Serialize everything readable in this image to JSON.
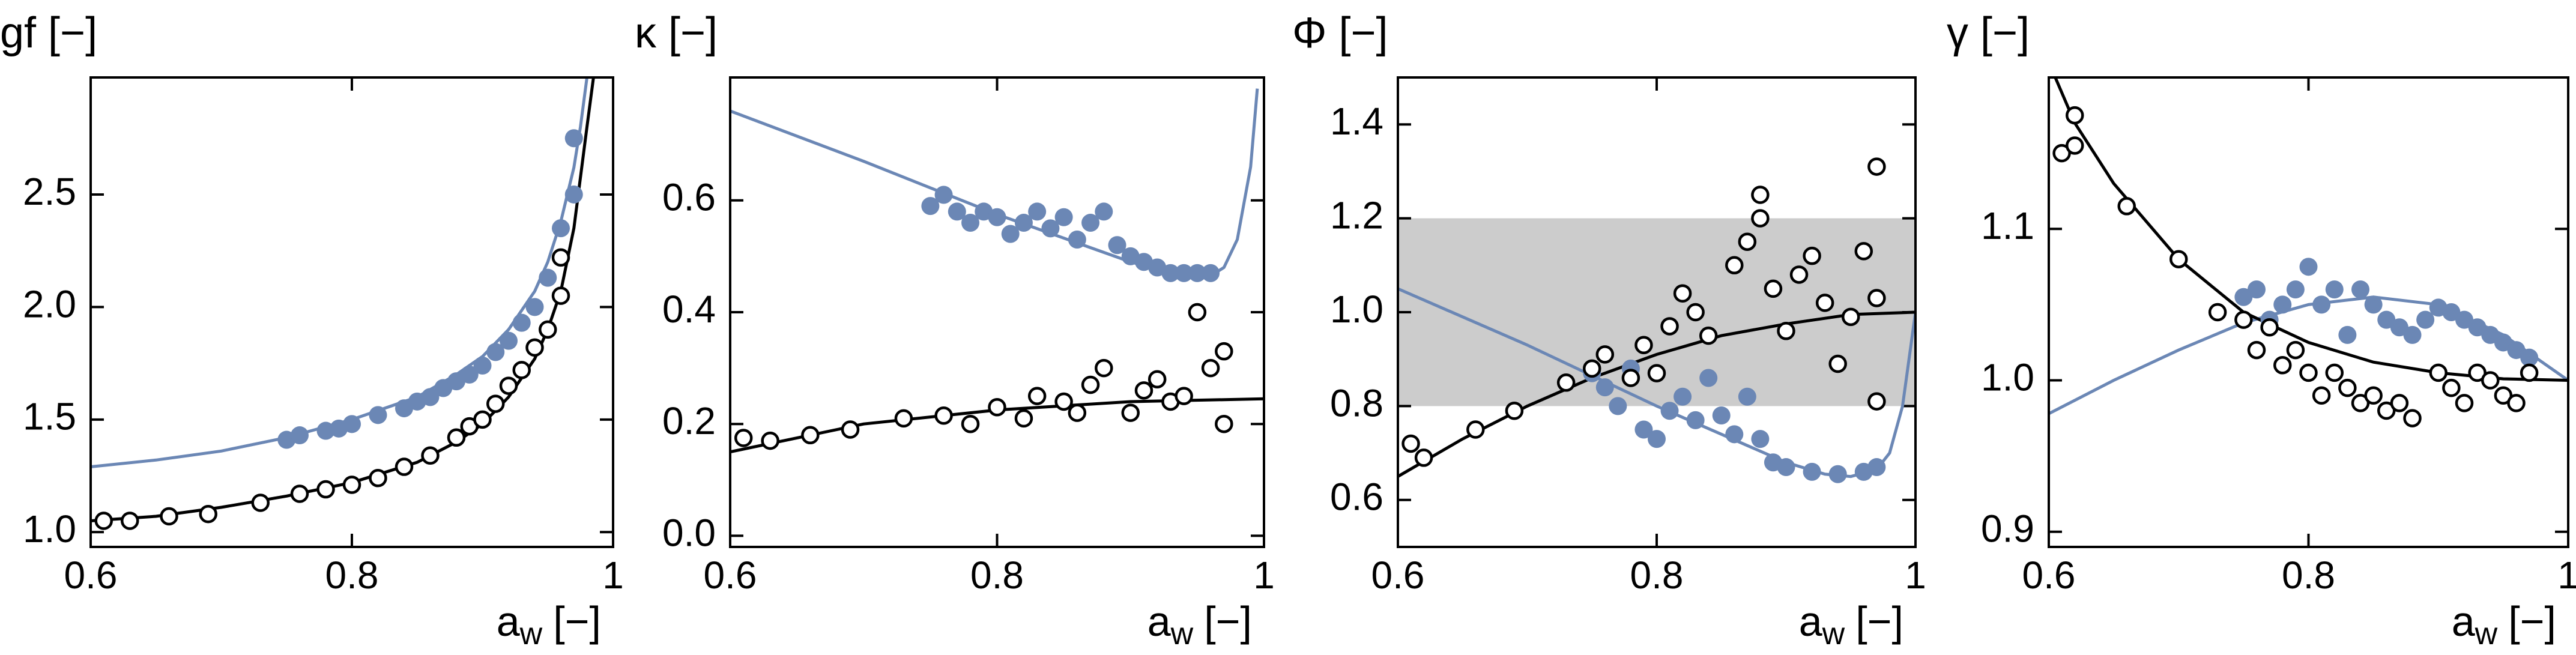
{
  "chart_data": [
    {
      "type": "scatter",
      "title": "gf [−]",
      "xlabel": [
        "a",
        "w",
        "[−]"
      ],
      "xlim": [
        0.6,
        1
      ],
      "xticks": [
        0.6,
        0.8,
        1
      ],
      "ylim": [
        0.934,
        3.02
      ],
      "yticks": [
        {
          "value": 1,
          "label": "1.0"
        },
        1.5,
        {
          "value": 2,
          "label": "2.0"
        },
        2.5
      ],
      "series": [
        {
          "color": "#6b87b5",
          "style": "line",
          "x": [
            0.6,
            0.65,
            0.7,
            0.75,
            0.8,
            0.85,
            0.88,
            0.9,
            0.92,
            0.94,
            0.95,
            0.96,
            0.97,
            0.975,
            0.98
          ],
          "values": [
            1.29,
            1.32,
            1.36,
            1.42,
            1.5,
            1.6,
            1.7,
            1.78,
            1.9,
            2.07,
            2.2,
            2.38,
            2.62,
            2.8,
            3.02
          ]
        },
        {
          "color": "#000000",
          "style": "line",
          "x": [
            0.6,
            0.65,
            0.7,
            0.75,
            0.8,
            0.85,
            0.88,
            0.9,
            0.92,
            0.94,
            0.95,
            0.96,
            0.97,
            0.98,
            0.985
          ],
          "values": [
            1.05,
            1.07,
            1.11,
            1.16,
            1.22,
            1.31,
            1.4,
            1.48,
            1.6,
            1.77,
            1.9,
            2.07,
            2.35,
            2.8,
            3.02
          ]
        },
        {
          "color": "#6b87b5",
          "style": "filled",
          "x": [
            0.75,
            0.76,
            0.78,
            0.79,
            0.8,
            0.82,
            0.84,
            0.85,
            0.86,
            0.87,
            0.88,
            0.89,
            0.9,
            0.91,
            0.92,
            0.93,
            0.94,
            0.95,
            0.96,
            0.97,
            0.97
          ],
          "values": [
            1.41,
            1.43,
            1.45,
            1.46,
            1.48,
            1.52,
            1.55,
            1.58,
            1.6,
            1.64,
            1.67,
            1.7,
            1.74,
            1.8,
            1.85,
            1.93,
            2.0,
            2.13,
            2.35,
            2.5,
            2.75
          ]
        },
        {
          "color": "#000000",
          "style": "open",
          "x": [
            0.61,
            0.63,
            0.66,
            0.69,
            0.73,
            0.76,
            0.78,
            0.8,
            0.82,
            0.84,
            0.86,
            0.88,
            0.89,
            0.9,
            0.91,
            0.92,
            0.93,
            0.94,
            0.95,
            0.96,
            0.96
          ],
          "values": [
            1.05,
            1.05,
            1.07,
            1.08,
            1.13,
            1.17,
            1.19,
            1.21,
            1.24,
            1.29,
            1.34,
            1.42,
            1.47,
            1.5,
            1.57,
            1.65,
            1.72,
            1.82,
            1.9,
            2.05,
            2.22
          ]
        }
      ]
    },
    {
      "type": "scatter",
      "title": "κ [−]",
      "xlabel": [
        "a",
        "w",
        "[−]"
      ],
      "xlim": [
        0.6,
        1
      ],
      "xticks": [
        0.6,
        0.8,
        1
      ],
      "ylim": [
        -0.02,
        0.82
      ],
      "yticks": [
        {
          "value": 0,
          "label": "0.0"
        },
        0.2,
        0.4,
        0.6
      ],
      "series": [
        {
          "color": "#6b87b5",
          "style": "line",
          "x": [
            0.6,
            0.7,
            0.8,
            0.9,
            0.93,
            0.95,
            0.96,
            0.97,
            0.98,
            0.99,
            0.995
          ],
          "values": [
            0.76,
            0.67,
            0.575,
            0.49,
            0.47,
            0.46,
            0.465,
            0.48,
            0.53,
            0.66,
            0.8
          ]
        },
        {
          "color": "#000000",
          "style": "line",
          "x": [
            0.6,
            0.7,
            0.8,
            0.9,
            1
          ],
          "values": [
            0.15,
            0.2,
            0.225,
            0.24,
            0.245
          ]
        },
        {
          "color": "#6b87b5",
          "style": "filled",
          "x": [
            0.75,
            0.76,
            0.77,
            0.78,
            0.79,
            0.8,
            0.81,
            0.82,
            0.83,
            0.84,
            0.85,
            0.86,
            0.87,
            0.88,
            0.89,
            0.9,
            0.91,
            0.92,
            0.93,
            0.94,
            0.95,
            0.96
          ],
          "values": [
            0.59,
            0.61,
            0.58,
            0.56,
            0.58,
            0.57,
            0.54,
            0.56,
            0.58,
            0.55,
            0.57,
            0.53,
            0.56,
            0.58,
            0.52,
            0.5,
            0.49,
            0.48,
            0.47,
            0.47,
            0.47,
            0.47
          ]
        },
        {
          "color": "#000000",
          "style": "open",
          "x": [
            0.61,
            0.63,
            0.66,
            0.69,
            0.73,
            0.76,
            0.78,
            0.8,
            0.82,
            0.83,
            0.85,
            0.86,
            0.87,
            0.88,
            0.9,
            0.91,
            0.92,
            0.93,
            0.94,
            0.95,
            0.96,
            0.97,
            0.97
          ],
          "values": [
            0.175,
            0.17,
            0.18,
            0.19,
            0.21,
            0.215,
            0.2,
            0.23,
            0.21,
            0.25,
            0.24,
            0.22,
            0.27,
            0.3,
            0.22,
            0.26,
            0.28,
            0.24,
            0.25,
            0.4,
            0.3,
            0.2,
            0.33
          ]
        }
      ]
    },
    {
      "type": "scatter",
      "title": "Φ [−]",
      "xlabel": [
        "a",
        "w",
        "[−]"
      ],
      "xlim": [
        0.6,
        1
      ],
      "xticks": [
        0.6,
        0.8,
        1
      ],
      "ylim": [
        0.5,
        1.5
      ],
      "yticks": [
        0.6,
        0.8,
        {
          "value": 1,
          "label": "1.0"
        },
        1.2,
        1.4
      ],
      "band": {
        "range": [
          0.8,
          1.2
        ],
        "color": "#cccccc"
      },
      "series": [
        {
          "color": "#6b87b5",
          "style": "line",
          "x": [
            0.6,
            0.7,
            0.8,
            0.9,
            0.93,
            0.95,
            0.97,
            0.98,
            0.99,
            1
          ],
          "values": [
            1.05,
            0.93,
            0.8,
            0.68,
            0.655,
            0.65,
            0.665,
            0.7,
            0.8,
            1.0
          ]
        },
        {
          "color": "#000000",
          "style": "line",
          "x": [
            0.6,
            0.65,
            0.7,
            0.75,
            0.8,
            0.85,
            0.9,
            0.95,
            1
          ],
          "values": [
            0.65,
            0.73,
            0.8,
            0.86,
            0.91,
            0.95,
            0.975,
            0.995,
            1.0
          ]
        },
        {
          "color": "#6b87b5",
          "style": "filled",
          "x": [
            0.75,
            0.76,
            0.77,
            0.78,
            0.79,
            0.8,
            0.81,
            0.82,
            0.83,
            0.84,
            0.85,
            0.86,
            0.87,
            0.88,
            0.89,
            0.9,
            0.92,
            0.94,
            0.96,
            0.97
          ],
          "values": [
            0.87,
            0.84,
            0.8,
            0.88,
            0.75,
            0.73,
            0.79,
            0.82,
            0.77,
            0.86,
            0.78,
            0.74,
            0.82,
            0.73,
            0.68,
            0.67,
            0.66,
            0.655,
            0.66,
            0.67
          ]
        },
        {
          "color": "#000000",
          "style": "open",
          "x": [
            0.61,
            0.62,
            0.66,
            0.69,
            0.73,
            0.75,
            0.76,
            0.78,
            0.79,
            0.8,
            0.81,
            0.82,
            0.83,
            0.84,
            0.86,
            0.87,
            0.88,
            0.88,
            0.89,
            0.9,
            0.91,
            0.92,
            0.93,
            0.94,
            0.95,
            0.96,
            0.97,
            0.97,
            0.97
          ],
          "values": [
            0.72,
            0.69,
            0.75,
            0.79,
            0.85,
            0.88,
            0.91,
            0.86,
            0.93,
            0.87,
            0.97,
            1.04,
            1.0,
            0.95,
            1.1,
            1.15,
            1.2,
            1.25,
            1.05,
            0.96,
            1.08,
            1.12,
            1.02,
            0.89,
            0.99,
            1.13,
            1.31,
            0.81,
            1.03
          ]
        }
      ]
    },
    {
      "type": "scatter",
      "title": "γ [−]",
      "xlabel": [
        "a",
        "w",
        "[−]"
      ],
      "xlim": [
        0.6,
        1
      ],
      "xticks": [
        0.6,
        0.8,
        1
      ],
      "ylim": [
        0.89,
        1.2
      ],
      "yticks": [
        0.9,
        {
          "value": 1,
          "label": "1.0"
        },
        1.1
      ],
      "series": [
        {
          "color": "#6b87b5",
          "style": "line",
          "x": [
            0.6,
            0.65,
            0.7,
            0.75,
            0.8,
            0.85,
            0.9,
            0.95,
            1
          ],
          "values": [
            0.978,
            1.0,
            1.02,
            1.038,
            1.05,
            1.055,
            1.05,
            1.03,
            1.0
          ]
        },
        {
          "color": "#000000",
          "style": "line",
          "x": [
            0.6,
            0.62,
            0.65,
            0.7,
            0.75,
            0.8,
            0.85,
            0.9,
            0.95,
            1
          ],
          "values": [
            1.21,
            1.17,
            1.13,
            1.08,
            1.045,
            1.025,
            1.012,
            1.005,
            1.001,
            1.0
          ]
        },
        {
          "color": "#6b87b5",
          "style": "filled",
          "x": [
            0.75,
            0.76,
            0.77,
            0.78,
            0.79,
            0.8,
            0.81,
            0.82,
            0.83,
            0.84,
            0.85,
            0.86,
            0.87,
            0.88,
            0.89,
            0.9,
            0.91,
            0.92,
            0.93,
            0.94,
            0.95,
            0.96,
            0.97
          ],
          "values": [
            1.055,
            1.06,
            1.04,
            1.05,
            1.06,
            1.075,
            1.05,
            1.06,
            1.03,
            1.06,
            1.05,
            1.04,
            1.035,
            1.03,
            1.04,
            1.048,
            1.045,
            1.04,
            1.035,
            1.03,
            1.025,
            1.02,
            1.015
          ]
        },
        {
          "color": "#000000",
          "style": "open",
          "x": [
            0.61,
            0.62,
            0.62,
            0.66,
            0.7,
            0.73,
            0.75,
            0.76,
            0.77,
            0.78,
            0.79,
            0.8,
            0.81,
            0.82,
            0.83,
            0.84,
            0.85,
            0.86,
            0.87,
            0.88,
            0.9,
            0.91,
            0.92,
            0.93,
            0.94,
            0.95,
            0.96,
            0.97
          ],
          "values": [
            1.15,
            1.175,
            1.155,
            1.115,
            1.08,
            1.045,
            1.04,
            1.02,
            1.035,
            1.01,
            1.02,
            1.005,
            0.99,
            1.005,
            0.995,
            0.985,
            0.99,
            0.98,
            0.985,
            0.975,
            1.005,
            0.995,
            0.985,
            1.005,
            1.0,
            0.99,
            0.985,
            1.005
          ]
        }
      ]
    }
  ]
}
